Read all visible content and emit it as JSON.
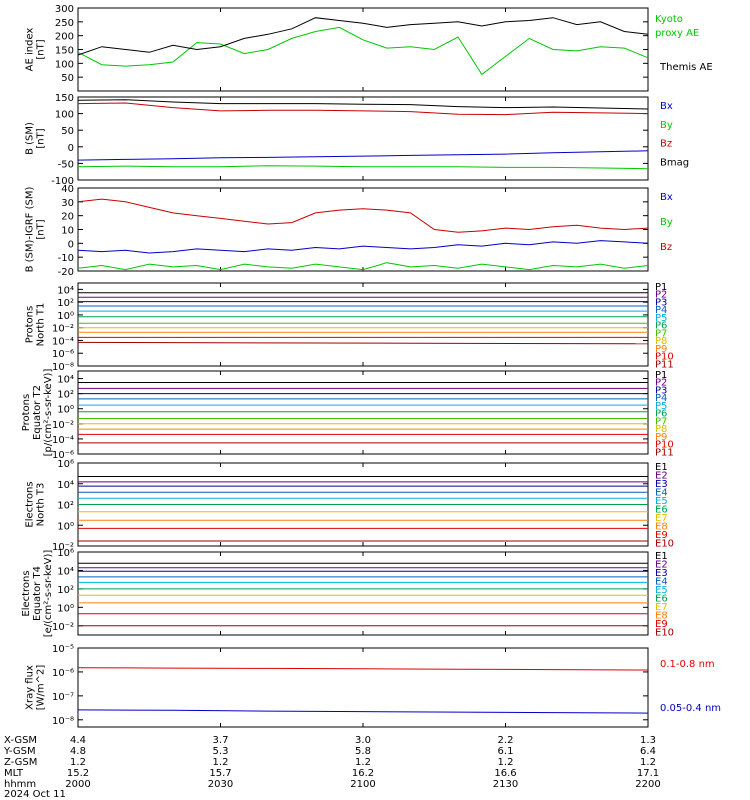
{
  "chart_data": [
    {
      "type": "line",
      "ylabel": [
        "AE index",
        "[nT]"
      ],
      "ylim": [
        0,
        300
      ],
      "ticks": [
        50,
        100,
        150,
        200,
        250,
        300
      ],
      "tick_labels": [
        "50",
        "100",
        "150",
        "200",
        "250",
        "300"
      ],
      "x": [
        0,
        5,
        10,
        15,
        20,
        25,
        30,
        35,
        40,
        45,
        50,
        55,
        60,
        65,
        70,
        75,
        80,
        85,
        90,
        95,
        100,
        105,
        110,
        115,
        120
      ],
      "series": [
        {
          "name": "Kyoto proxy AE",
          "color": "#00c800",
          "values": [
            140,
            95,
            90,
            95,
            105,
            175,
            170,
            135,
            150,
            190,
            215,
            230,
            185,
            155,
            160,
            150,
            195,
            60,
            125,
            190,
            150,
            145,
            160,
            155,
            120
          ]
        },
        {
          "name": "Themis AE",
          "color": "#000000",
          "values": [
            130,
            160,
            150,
            140,
            165,
            150,
            160,
            190,
            205,
            225,
            265,
            255,
            245,
            230,
            240,
            245,
            250,
            235,
            250,
            255,
            265,
            240,
            250,
            215,
            205
          ]
        }
      ]
    },
    {
      "type": "line",
      "ylabel": [
        "B (SM)",
        "[nT]"
      ],
      "ylim": [
        -100,
        150
      ],
      "ticks": [
        -100,
        -50,
        0,
        50,
        100,
        150
      ],
      "tick_labels": [
        "-100",
        "-50",
        "0",
        "50",
        "100",
        "150"
      ],
      "x": [
        0,
        10,
        20,
        30,
        40,
        50,
        60,
        70,
        80,
        90,
        100,
        110,
        120
      ],
      "series": [
        {
          "name": "Bx",
          "color": "#0000c8",
          "values": [
            -40,
            -38,
            -36,
            -33,
            -32,
            -30,
            -28,
            -26,
            -24,
            -22,
            -18,
            -15,
            -12
          ]
        },
        {
          "name": "By",
          "color": "#00c800",
          "values": [
            -60,
            -58,
            -60,
            -60,
            -57,
            -58,
            -60,
            -60,
            -60,
            -62,
            -62,
            -64,
            -66
          ]
        },
        {
          "name": "Bz",
          "color": "#c80000",
          "values": [
            130,
            132,
            118,
            108,
            110,
            110,
            108,
            106,
            98,
            97,
            104,
            102,
            100
          ]
        },
        {
          "name": "Bmag",
          "color": "#000000",
          "values": [
            140,
            142,
            135,
            130,
            130,
            130,
            128,
            127,
            121,
            118,
            120,
            117,
            114
          ]
        }
      ]
    },
    {
      "type": "line",
      "ylabel": [
        "B (SM)-IGRF (SM)",
        "[nT]"
      ],
      "ylim": [
        -20,
        40
      ],
      "ticks": [
        -20,
        -10,
        0,
        10,
        20,
        30,
        40
      ],
      "tick_labels": [
        "-20",
        "-10",
        "0",
        "10",
        "20",
        "30",
        "40"
      ],
      "x": [
        0,
        5,
        10,
        15,
        20,
        25,
        30,
        35,
        40,
        45,
        50,
        55,
        60,
        65,
        70,
        75,
        80,
        85,
        90,
        95,
        100,
        105,
        110,
        115,
        120
      ],
      "series": [
        {
          "name": "Bx",
          "color": "#0000c8",
          "values": [
            -5,
            -6,
            -5,
            -7,
            -6,
            -4,
            -5,
            -6,
            -4,
            -5,
            -3,
            -4,
            -2,
            -3,
            -4,
            -3,
            -1,
            -2,
            0,
            -1,
            1,
            0,
            2,
            1,
            0
          ]
        },
        {
          "name": "By",
          "color": "#00c800",
          "values": [
            -18,
            -16,
            -19,
            -15,
            -17,
            -16,
            -19,
            -15,
            -17,
            -18,
            -15,
            -17,
            -19,
            -14,
            -17,
            -16,
            -18,
            -15,
            -17,
            -19,
            -16,
            -17,
            -15,
            -18,
            -16
          ]
        },
        {
          "name": "Bz",
          "color": "#c80000",
          "values": [
            30,
            32,
            30,
            26,
            22,
            20,
            18,
            16,
            14,
            15,
            22,
            24,
            25,
            24,
            22,
            10,
            8,
            9,
            11,
            10,
            12,
            13,
            11,
            10,
            11
          ]
        }
      ]
    },
    {
      "type": "line",
      "ylog": true,
      "ylabel": [
        "Protons",
        "North T1"
      ],
      "ylim": [
        1e-08,
        100000.0
      ],
      "tick_labels": [
        "10⁴",
        "10²",
        "10⁰",
        "10⁻²",
        "10⁻⁴",
        "10⁻⁶",
        "10⁻⁸"
      ],
      "tick_exps": [
        4,
        2,
        0,
        -2,
        -4,
        -6,
        -8
      ],
      "x": [
        0,
        120
      ],
      "series": [
        {
          "name": "P1",
          "color": "#000000",
          "values": [
            3000,
            3000
          ]
        },
        {
          "name": "P2",
          "color": "#6a0080",
          "values": [
            600,
            600
          ]
        },
        {
          "name": "P3",
          "color": "#0000a0",
          "values": [
            120,
            120
          ]
        },
        {
          "name": "P4",
          "color": "#0060c0",
          "values": [
            25,
            25
          ]
        },
        {
          "name": "P5",
          "color": "#00b0e0",
          "values": [
            4,
            4
          ]
        },
        {
          "name": "P6",
          "color": "#00a050",
          "values": [
            0.5,
            0.5
          ]
        },
        {
          "name": "P7",
          "color": "#40c000",
          "values": [
            0.05,
            0.05
          ]
        },
        {
          "name": "P8",
          "color": "#e0c000",
          "values": [
            0.01,
            0.01
          ]
        },
        {
          "name": "P9",
          "color": "#ff8000",
          "values": [
            0.002,
            0.002
          ]
        },
        {
          "name": "P10",
          "color": "#e00000",
          "values": [
            0.0003,
            0.0003
          ]
        },
        {
          "name": "P11",
          "color": "#a00000",
          "values": [
            5e-05,
            3e-05
          ]
        }
      ]
    },
    {
      "type": "line",
      "ylog": true,
      "ylabel": [
        "Protons",
        "Equator T2",
        "[p/(cm²-s-sr-keV)]"
      ],
      "ylim": [
        1e-06,
        100000.0
      ],
      "tick_labels": [
        "10⁴",
        "10²",
        "10⁰",
        "10⁻²",
        "10⁻⁴",
        "10⁻⁶"
      ],
      "tick_exps": [
        4,
        2,
        0,
        -2,
        -4,
        -6
      ],
      "x": [
        0,
        120
      ],
      "series": [
        {
          "name": "P1",
          "color": "#000000",
          "values": [
            3000,
            3000
          ]
        },
        {
          "name": "P2",
          "color": "#6a0080",
          "values": [
            500,
            500
          ]
        },
        {
          "name": "P3",
          "color": "#0000a0",
          "values": [
            100,
            100
          ]
        },
        {
          "name": "P4",
          "color": "#0060c0",
          "values": [
            20,
            20
          ]
        },
        {
          "name": "P5",
          "color": "#00b0e0",
          "values": [
            3,
            3
          ]
        },
        {
          "name": "P6",
          "color": "#00a050",
          "values": [
            0.4,
            0.4
          ]
        },
        {
          "name": "P7",
          "color": "#40c000",
          "values": [
            0.05,
            0.05
          ]
        },
        {
          "name": "P8",
          "color": "#e0c000",
          "values": [
            0.01,
            0.01
          ]
        },
        {
          "name": "P9",
          "color": "#ff8000",
          "values": [
            0.002,
            0.002
          ]
        },
        {
          "name": "P10",
          "color": "#e00000",
          "values": [
            0.0004,
            0.0004
          ]
        },
        {
          "name": "P11",
          "color": "#a00000",
          "values": [
            3e-05,
            3e-05
          ]
        }
      ]
    },
    {
      "type": "line",
      "ylog": true,
      "ylabel": [
        "Electrons",
        "North T3"
      ],
      "ylim": [
        0.01,
        1000000.0
      ],
      "tick_labels": [
        "10⁶",
        "10⁴",
        "10²",
        "10⁰",
        "10⁻²"
      ],
      "tick_exps": [
        6,
        4,
        2,
        0,
        -2
      ],
      "x": [
        0,
        120
      ],
      "series": [
        {
          "name": "E1",
          "color": "#000000",
          "values": [
            50000,
            50000
          ]
        },
        {
          "name": "E2",
          "color": "#6a0080",
          "values": [
            15000,
            15000
          ]
        },
        {
          "name": "E3",
          "color": "#0000a0",
          "values": [
            6000,
            6000
          ]
        },
        {
          "name": "E4",
          "color": "#0060c0",
          "values": [
            1500,
            1500
          ]
        },
        {
          "name": "E5",
          "color": "#00b0e0",
          "values": [
            400,
            400
          ]
        },
        {
          "name": "E6",
          "color": "#00a050",
          "values": [
            100,
            100
          ]
        },
        {
          "name": "E7",
          "color": "#e0c000",
          "values": [
            20,
            20
          ]
        },
        {
          "name": "E8",
          "color": "#ff8000",
          "values": [
            3,
            3
          ]
        },
        {
          "name": "E9",
          "color": "#e00000",
          "values": [
            0.5,
            0.5
          ]
        },
        {
          "name": "E10",
          "color": "#a00000",
          "values": [
            0.03,
            0.03
          ]
        }
      ]
    },
    {
      "type": "line",
      "ylog": true,
      "ylabel": [
        "Electrons",
        "Equator T4",
        "[e/(cm²-s-sr-keV)]"
      ],
      "ylim": [
        0.001,
        1000000.0
      ],
      "tick_labels": [
        "10⁶",
        "10⁴",
        "10²",
        "10⁰",
        "10⁻²"
      ],
      "tick_exps": [
        6,
        4,
        2,
        0,
        -2
      ],
      "x": [
        0,
        120
      ],
      "series": [
        {
          "name": "E1",
          "color": "#000000",
          "values": [
            60000,
            60000
          ]
        },
        {
          "name": "E2",
          "color": "#6a0080",
          "values": [
            20000,
            20000
          ]
        },
        {
          "name": "E3",
          "color": "#0000a0",
          "values": [
            8000,
            8000
          ]
        },
        {
          "name": "E4",
          "color": "#0060c0",
          "values": [
            2000,
            2000
          ]
        },
        {
          "name": "E5",
          "color": "#00b0e0",
          "values": [
            500,
            500
          ]
        },
        {
          "name": "E6",
          "color": "#00a050",
          "values": [
            100,
            100
          ]
        },
        {
          "name": "E7",
          "color": "#e0c000",
          "values": [
            20,
            20
          ]
        },
        {
          "name": "E8",
          "color": "#ff8000",
          "values": [
            3,
            3
          ]
        },
        {
          "name": "E9",
          "color": "#e00000",
          "values": [
            0.2,
            0.2
          ]
        },
        {
          "name": "E10",
          "color": "#a00000",
          "values": [
            0.01,
            0.01
          ]
        }
      ]
    },
    {
      "type": "line",
      "ylog": true,
      "ylabel": [
        "Xray flux",
        "[W/m^2]"
      ],
      "ylim": [
        5e-09,
        1e-05
      ],
      "tick_labels": [
        "10⁻⁵",
        "10⁻⁶",
        "10⁻⁷",
        "10⁻⁸"
      ],
      "tick_exps": [
        -5,
        -6,
        -7,
        -8
      ],
      "x": [
        0,
        20,
        40,
        60,
        80,
        100,
        120
      ],
      "series": [
        {
          "name": "0.1-0.8 nm",
          "color": "#e00000",
          "values": [
            1.5e-06,
            1.45e-06,
            1.4e-06,
            1.35e-06,
            1.3e-06,
            1.25e-06,
            1.2e-06
          ]
        },
        {
          "name": "0.05-0.4 nm",
          "color": "#0000c8",
          "values": [
            2.6e-08,
            2.5e-08,
            2.3e-08,
            2.2e-08,
            2.1e-08,
            2e-08,
            1.9e-08
          ]
        }
      ]
    }
  ],
  "axis_footer": {
    "row_labels": [
      "X-GSM",
      "Y-GSM",
      "Z-GSM",
      "MLT",
      "hhmm"
    ],
    "date": "2024 Oct 11",
    "columns": [
      [
        "4.4",
        "4.8",
        "1.2",
        "15.2",
        "2000"
      ],
      [
        "3.7",
        "5.3",
        "1.2",
        "15.7",
        "2030"
      ],
      [
        "3.0",
        "5.8",
        "1.2",
        "16.2",
        "2100"
      ],
      [
        "2.2",
        "6.1",
        "1.2",
        "16.6",
        "2130"
      ],
      [
        "1.3",
        "6.4",
        "1.2",
        "17.1",
        "2200"
      ]
    ]
  },
  "colors": {
    "frame": "#000000",
    "background": "#ffffff"
  }
}
